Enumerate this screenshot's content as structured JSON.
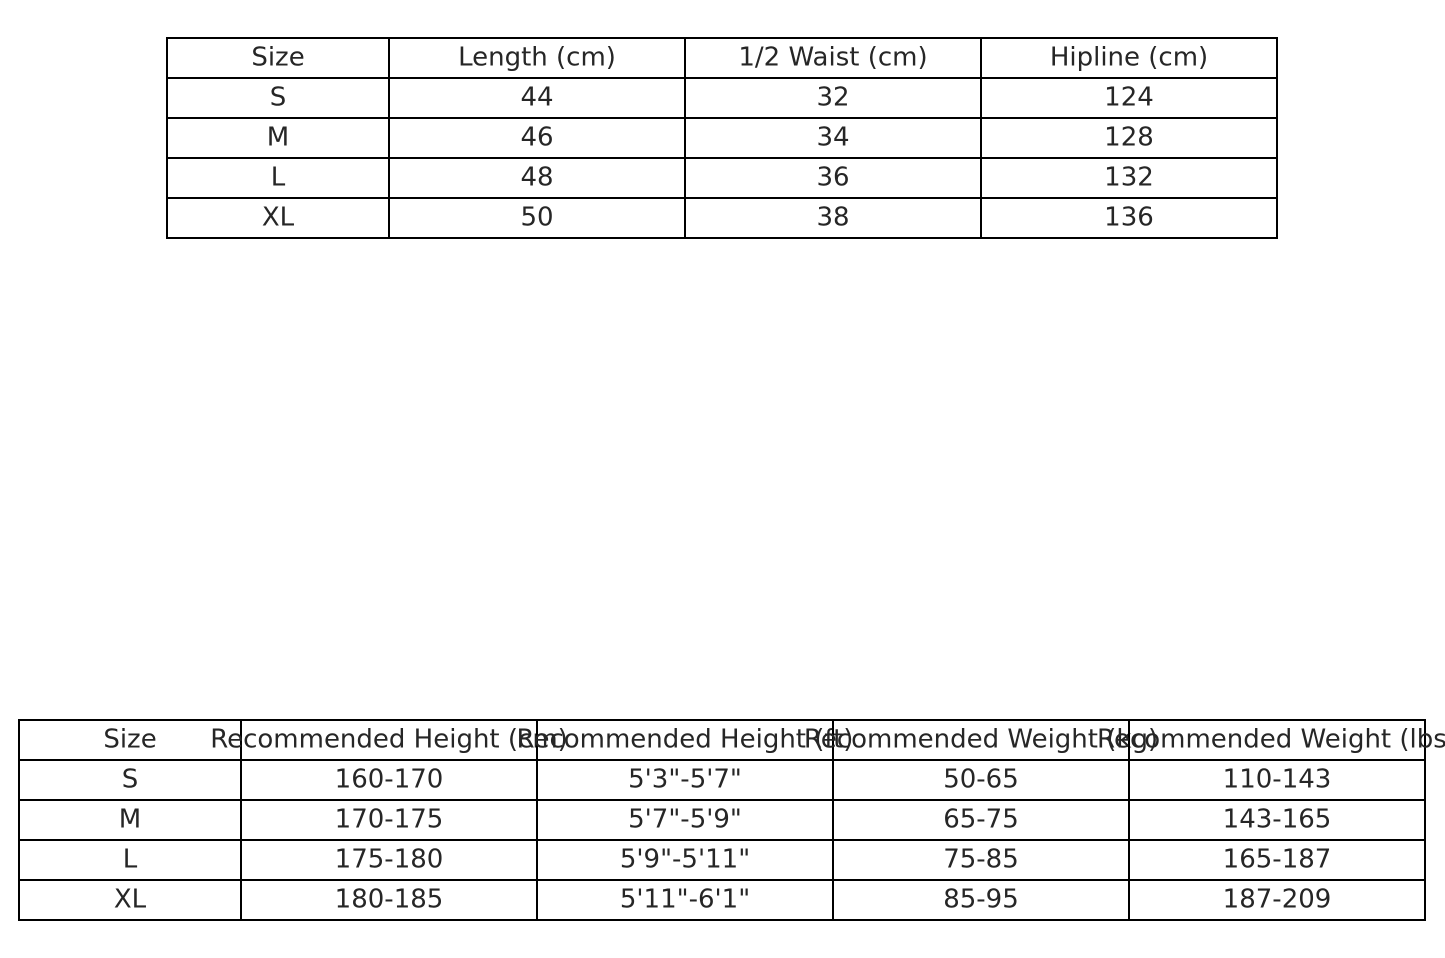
{
  "measurements_table": {
    "headers": [
      "Size",
      "Length (cm)",
      "1/2 Waist (cm)",
      "Hipline (cm)"
    ],
    "rows": [
      [
        "S",
        "44",
        "32",
        "124"
      ],
      [
        "M",
        "46",
        "34",
        "128"
      ],
      [
        "L",
        "48",
        "36",
        "132"
      ],
      [
        "XL",
        "50",
        "38",
        "136"
      ]
    ]
  },
  "recommendation_table": {
    "headers": [
      "Size",
      "Recommended Height (cm)",
      "Recommended Height (ft)",
      "Recommended Weight (kg)",
      "Recommended Weight (lbs)"
    ],
    "rows": [
      [
        "S",
        "160-170",
        "5'3\"-5'7\"",
        "50-65",
        "110-143"
      ],
      [
        "M",
        "170-175",
        "5'7\"-5'9\"",
        "65-75",
        "143-165"
      ],
      [
        "L",
        "175-180",
        "5'9\"-5'11\"",
        "75-85",
        "165-187"
      ],
      [
        "XL",
        "180-185",
        "5'11\"-6'1\"",
        "85-95",
        "187-209"
      ]
    ]
  }
}
